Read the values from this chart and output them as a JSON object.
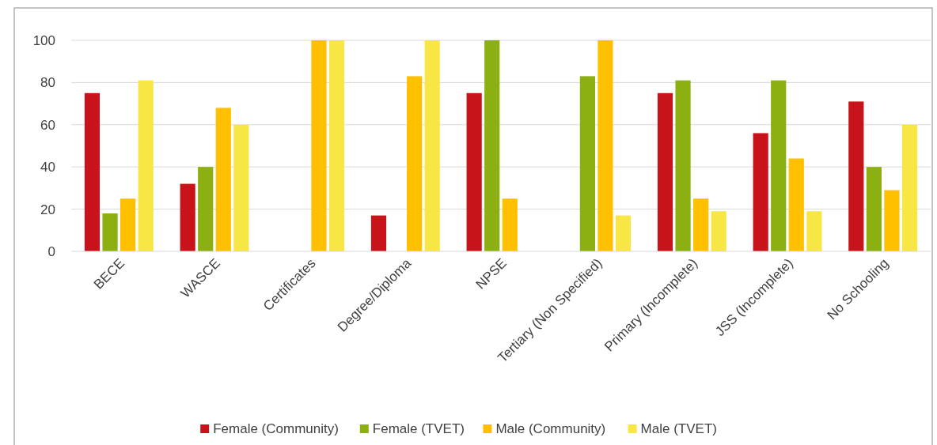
{
  "chart_data": {
    "type": "bar",
    "categories": [
      "BECE",
      "WASCE",
      "Certificates",
      "Degree/Diploma",
      "NPSE",
      "Tertiary (Non Specified)",
      "Primary (Incomplete)",
      "JSS (Incomplete)",
      "No Schooling"
    ],
    "series": [
      {
        "name": "Female (Community)",
        "color": "#c8131b",
        "values": [
          75,
          32,
          0,
          17,
          75,
          0,
          75,
          56,
          71
        ]
      },
      {
        "name": "Female (TVET)",
        "color": "#8cb011",
        "values": [
          18,
          40,
          0,
          0,
          100,
          83,
          81,
          81,
          40
        ]
      },
      {
        "name": "Male (Community)",
        "color": "#ffc000",
        "values": [
          25,
          68,
          100,
          83,
          25,
          100,
          25,
          44,
          29
        ]
      },
      {
        "name": "Male (TVET)",
        "color": "#f8e645",
        "values": [
          81,
          60,
          100,
          100,
          0,
          17,
          19,
          19,
          60
        ]
      }
    ],
    "ylim": [
      0,
      100
    ],
    "yticks": [
      0,
      20,
      40,
      60,
      80,
      100
    ],
    "grid": "y",
    "legend": "bottom"
  }
}
